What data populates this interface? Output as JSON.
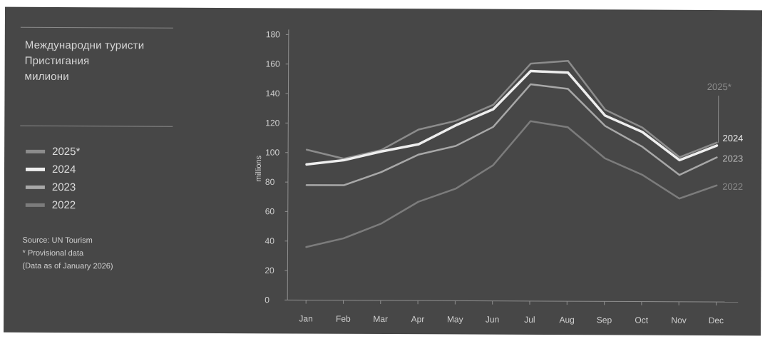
{
  "title": {
    "line1": "Международни туристи",
    "line2": "Пристигания",
    "line3": "милиони"
  },
  "legend": [
    {
      "label": "2025*",
      "color": "#8c8c8c"
    },
    {
      "label": "2024",
      "color": "#eeeeee"
    },
    {
      "label": "2023",
      "color": "#a8a8a8"
    },
    {
      "label": "2022",
      "color": "#7c7c7c"
    }
  ],
  "notes": {
    "source": "Source: UN Tourism",
    "provisional": "* Provisional data",
    "asof": "(Data as of January 2026)"
  },
  "chart_data": {
    "type": "line",
    "categories": [
      "Jan",
      "Feb",
      "Mar",
      "Apr",
      "May",
      "Jun",
      "Jul",
      "Aug",
      "Sep",
      "Oct",
      "Nov",
      "Dec"
    ],
    "ylabel": "millions",
    "ylim": [
      0,
      180
    ],
    "yticks": [
      0,
      20,
      40,
      60,
      80,
      100,
      120,
      140,
      160,
      180
    ],
    "grid": false,
    "series": [
      {
        "name": "2022",
        "color": "#7c7c7c",
        "width": 2.5,
        "values": [
          36,
          42,
          52,
          67,
          76,
          92,
          122,
          118,
          97,
          86,
          70,
          79
        ]
      },
      {
        "name": "2023",
        "color": "#a8a8a8",
        "width": 2.5,
        "values": [
          78,
          78,
          87,
          99,
          105,
          118,
          147,
          144,
          119,
          105,
          86,
          98
        ]
      },
      {
        "name": "2025*",
        "color": "#8c8c8c",
        "width": 2.5,
        "values": [
          102,
          96,
          102,
          116,
          122,
          133,
          161,
          163,
          130,
          118,
          98,
          108
        ]
      },
      {
        "name": "2024",
        "color": "#eeeeee",
        "width": 3.5,
        "values": [
          92,
          95,
          101,
          106,
          119,
          130,
          156,
          155,
          126,
          115,
          96,
          106
        ]
      }
    ],
    "end_labels": [
      {
        "series": "2024",
        "text": "2024"
      },
      {
        "series": "2023",
        "text": "2023"
      },
      {
        "series": "2022",
        "text": "2022"
      },
      {
        "series": "2025*",
        "text": "2025*"
      }
    ]
  }
}
